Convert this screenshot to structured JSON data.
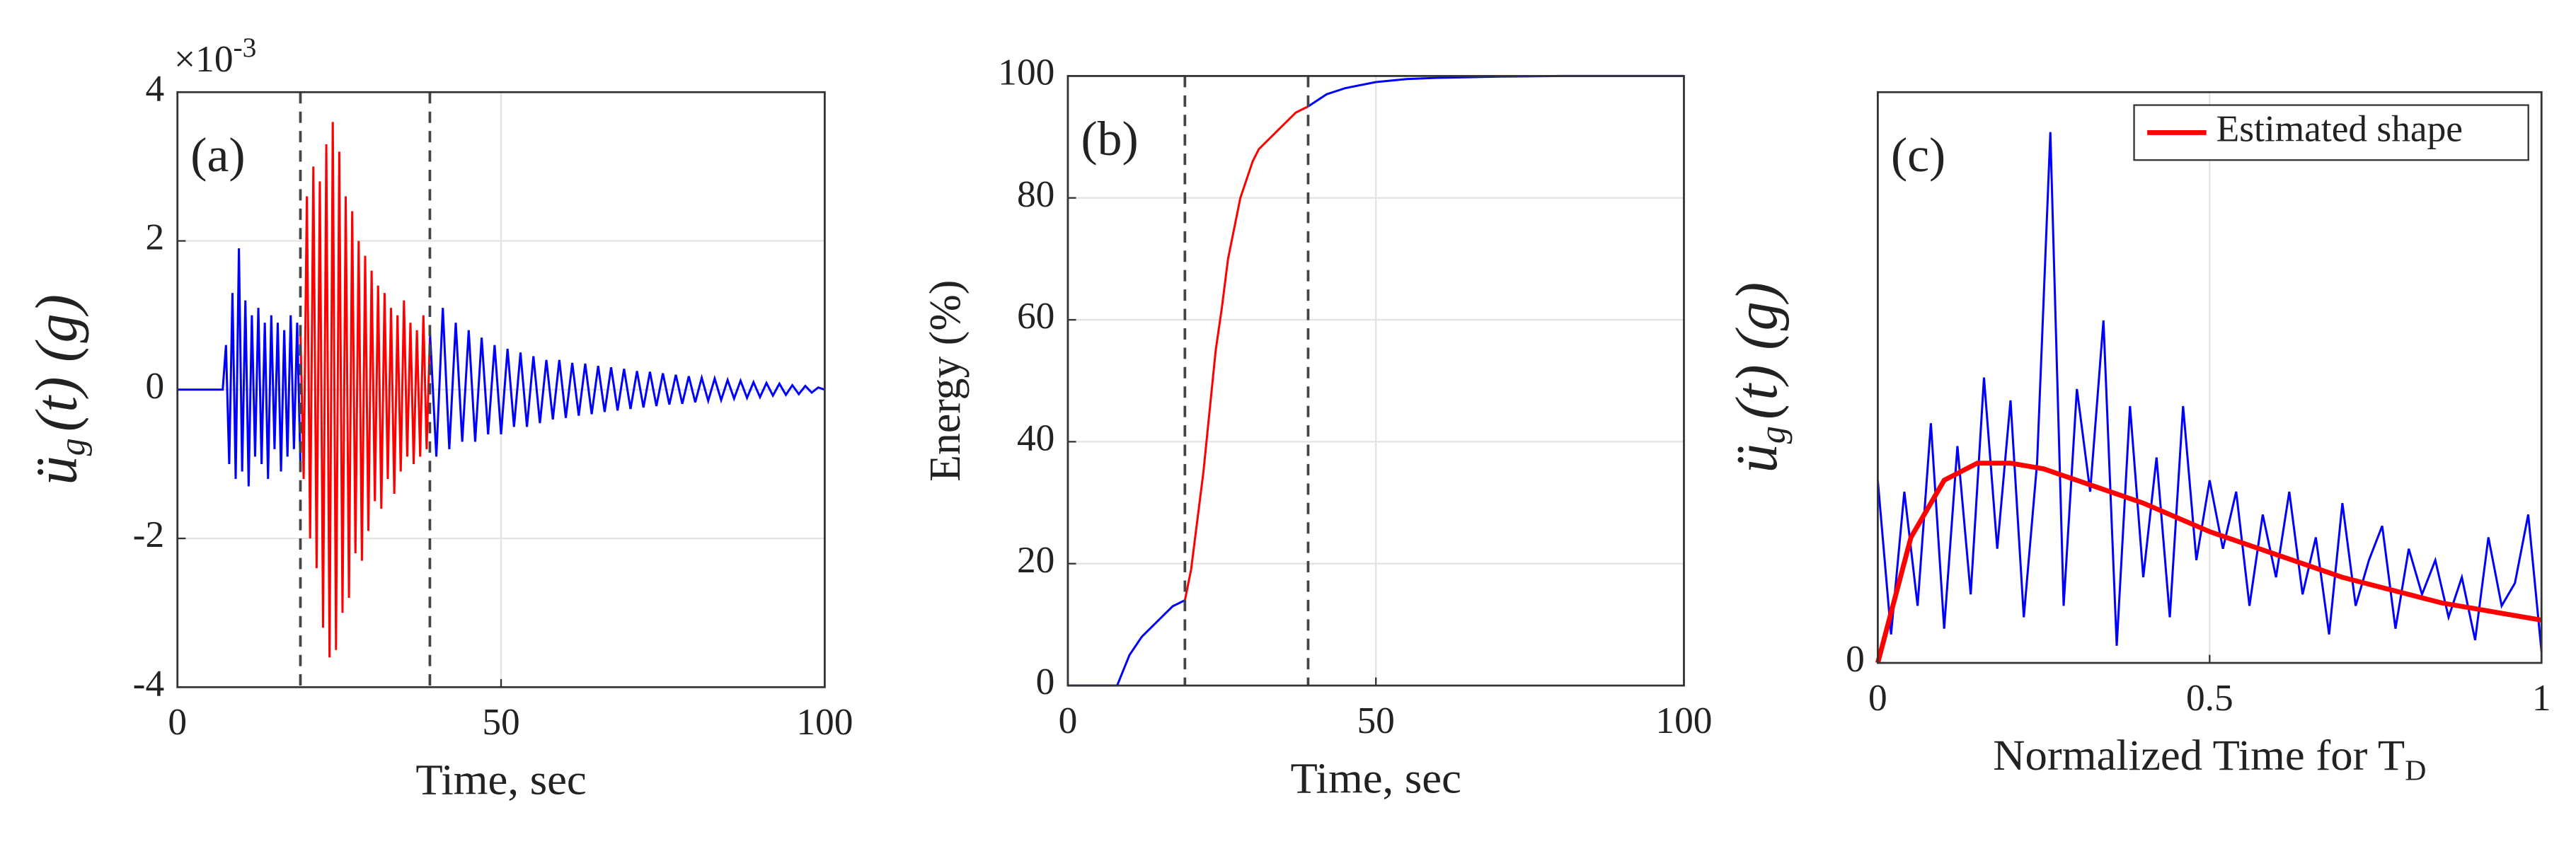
{
  "chart_data": [
    {
      "type": "line",
      "panel_label": "(a)",
      "x_label": "Time, sec",
      "y_label": {
        "main": "ü",
        "sub": "g",
        "rest": "(t)  (g)"
      },
      "y_exponent": {
        "base": "×10",
        "power": "-3"
      },
      "xlim": [
        0,
        100
      ],
      "ylim": [
        -4,
        4
      ],
      "xticks": [
        0,
        50,
        100
      ],
      "yticks": [
        -4,
        -2,
        0,
        2,
        4
      ],
      "grid": true,
      "vlines": [
        19,
        39
      ],
      "series": [
        {
          "color": "#0000ff",
          "x": [
            0,
            7,
            7.5,
            8,
            8.5,
            9,
            9.5,
            10,
            10.5,
            11,
            11.5,
            12,
            12.5,
            13,
            13.5,
            14,
            14.5,
            15,
            15.5,
            16,
            16.5,
            17,
            17.5,
            18,
            18.5,
            19
          ],
          "values": [
            0,
            0,
            0.6,
            -1.0,
            1.3,
            -1.2,
            1.9,
            -1.1,
            1.2,
            -1.3,
            1.0,
            -0.9,
            1.1,
            -1.0,
            0.9,
            -1.2,
            1.0,
            -0.8,
            0.9,
            -1.1,
            0.8,
            -0.9,
            1.0,
            -0.8,
            0.9,
            -1.0
          ]
        },
        {
          "color": "#ff0000",
          "x": [
            19,
            19.5,
            20,
            20.5,
            21,
            21.5,
            22,
            22.5,
            23,
            23.5,
            24,
            24.5,
            25,
            25.5,
            26,
            26.5,
            27,
            27.5,
            28,
            28.5,
            29,
            29.5,
            30,
            30.5,
            31,
            31.5,
            32,
            32.5,
            33,
            33.5,
            34,
            34.5,
            35,
            35.5,
            36,
            36.5,
            37,
            37.5,
            38,
            38.5,
            39
          ],
          "values": [
            0.8,
            -1.2,
            2.6,
            -2.0,
            3.0,
            -2.4,
            2.8,
            -3.2,
            3.3,
            -3.6,
            3.6,
            -3.5,
            3.2,
            -3.0,
            2.6,
            -2.8,
            2.4,
            -2.2,
            2.0,
            -2.3,
            1.8,
            -1.9,
            1.6,
            -1.5,
            1.4,
            -1.6,
            1.3,
            -1.2,
            1.1,
            -1.4,
            1.0,
            -1.1,
            1.2,
            -0.9,
            0.9,
            -1.0,
            0.8,
            -0.9,
            1.0,
            -0.8,
            0.7
          ]
        },
        {
          "color": "#0000ff",
          "x": [
            39,
            40,
            41,
            42,
            43,
            44,
            45,
            46,
            47,
            48,
            49,
            50,
            51,
            52,
            53,
            54,
            55,
            56,
            57,
            58,
            59,
            60,
            61,
            62,
            63,
            64,
            65,
            66,
            67,
            68,
            69,
            70,
            71,
            72,
            73,
            74,
            75,
            76,
            77,
            78,
            79,
            80,
            81,
            82,
            83,
            84,
            85,
            86,
            87,
            88,
            89,
            90,
            91,
            92,
            93,
            94,
            95,
            96,
            97,
            98,
            99,
            100
          ],
          "values": [
            0.8,
            -0.9,
            1.1,
            -0.8,
            0.9,
            -0.7,
            0.8,
            -0.7,
            0.7,
            -0.6,
            0.6,
            -0.6,
            0.55,
            -0.5,
            0.5,
            -0.5,
            0.45,
            -0.45,
            0.4,
            -0.4,
            0.4,
            -0.38,
            0.36,
            -0.35,
            0.35,
            -0.33,
            0.32,
            -0.3,
            0.3,
            -0.28,
            0.28,
            -0.26,
            0.25,
            -0.24,
            0.24,
            -0.22,
            0.22,
            -0.2,
            0.2,
            -0.19,
            0.18,
            -0.17,
            0.16,
            -0.15,
            0.15,
            -0.14,
            0.13,
            -0.12,
            0.12,
            -0.11,
            0.1,
            -0.1,
            0.09,
            -0.08,
            0.08,
            -0.07,
            0.06,
            -0.06,
            0.05,
            -0.04,
            0.03,
            0
          ]
        }
      ]
    },
    {
      "type": "line",
      "panel_label": "(b)",
      "x_label": "Time, sec",
      "y_label": {
        "main": "Energy (%)"
      },
      "xlim": [
        0,
        100
      ],
      "ylim": [
        0,
        100
      ],
      "xticks": [
        0,
        50,
        100
      ],
      "yticks": [
        0,
        20,
        40,
        60,
        80,
        100
      ],
      "grid": true,
      "vlines": [
        19,
        39
      ],
      "series": [
        {
          "color": "#0000ff",
          "x": [
            0,
            8,
            10,
            12,
            15,
            17,
            19
          ],
          "values": [
            0,
            0,
            5,
            8,
            11,
            13,
            14
          ]
        },
        {
          "color": "#ff0000",
          "x": [
            19,
            20,
            22,
            24,
            25,
            26,
            28,
            30,
            31,
            33,
            35,
            37,
            39
          ],
          "values": [
            14,
            19,
            35,
            55,
            62,
            70,
            80,
            86,
            88,
            90,
            92,
            94,
            95
          ]
        },
        {
          "color": "#0000ff",
          "x": [
            39,
            42,
            45,
            50,
            55,
            60,
            70,
            80,
            100
          ],
          "values": [
            95,
            97,
            98,
            99,
            99.5,
            99.7,
            99.9,
            100,
            100
          ]
        }
      ]
    },
    {
      "type": "line",
      "panel_label": "(c)",
      "x_label": {
        "main": "Normalized Time for T",
        "sub": "D"
      },
      "y_label": {
        "main": "ü",
        "sub": "g",
        "rest": "(t)  (g)"
      },
      "xlim": [
        0,
        1
      ],
      "ylim": [
        0,
        10
      ],
      "xticks": [
        0,
        0.5,
        1
      ],
      "yticks": [
        0
      ],
      "grid": true,
      "legend": "top-right",
      "series": [
        {
          "color": "#0000ff",
          "x": [
            0,
            0.02,
            0.04,
            0.06,
            0.08,
            0.1,
            0.12,
            0.14,
            0.16,
            0.18,
            0.2,
            0.22,
            0.24,
            0.26,
            0.28,
            0.3,
            0.32,
            0.34,
            0.36,
            0.38,
            0.4,
            0.42,
            0.44,
            0.46,
            0.48,
            0.5,
            0.52,
            0.54,
            0.56,
            0.58,
            0.6,
            0.62,
            0.64,
            0.66,
            0.68,
            0.7,
            0.72,
            0.74,
            0.76,
            0.78,
            0.8,
            0.82,
            0.84,
            0.86,
            0.88,
            0.9,
            0.92,
            0.94,
            0.96,
            0.98,
            1
          ],
          "values": [
            3.2,
            0.5,
            3.0,
            1.0,
            4.2,
            0.6,
            3.8,
            1.2,
            5.0,
            2.0,
            4.6,
            0.8,
            3.5,
            9.3,
            1.0,
            4.8,
            3.0,
            6.0,
            0.3,
            4.5,
            1.5,
            3.6,
            0.8,
            4.5,
            1.8,
            3.2,
            2.0,
            3.0,
            1.0,
            2.6,
            1.5,
            3.0,
            1.2,
            2.2,
            0.5,
            2.8,
            1.0,
            1.8,
            2.4,
            0.6,
            2.0,
            1.2,
            1.8,
            0.8,
            1.5,
            0.4,
            2.2,
            1.0,
            1.4,
            2.6,
            0.2
          ]
        },
        {
          "name": "Estimated shape",
          "color": "#ff0000",
          "x": [
            0,
            0.05,
            0.1,
            0.15,
            0.2,
            0.25,
            0.3,
            0.35,
            0.4,
            0.45,
            0.5,
            0.55,
            0.6,
            0.65,
            0.7,
            0.75,
            0.8,
            0.85,
            0.9,
            0.95,
            1
          ],
          "values": [
            0,
            2.2,
            3.2,
            3.5,
            3.5,
            3.4,
            3.2,
            3.0,
            2.8,
            2.55,
            2.3,
            2.1,
            1.9,
            1.7,
            1.5,
            1.35,
            1.2,
            1.05,
            0.95,
            0.85,
            0.75
          ]
        }
      ]
    }
  ]
}
